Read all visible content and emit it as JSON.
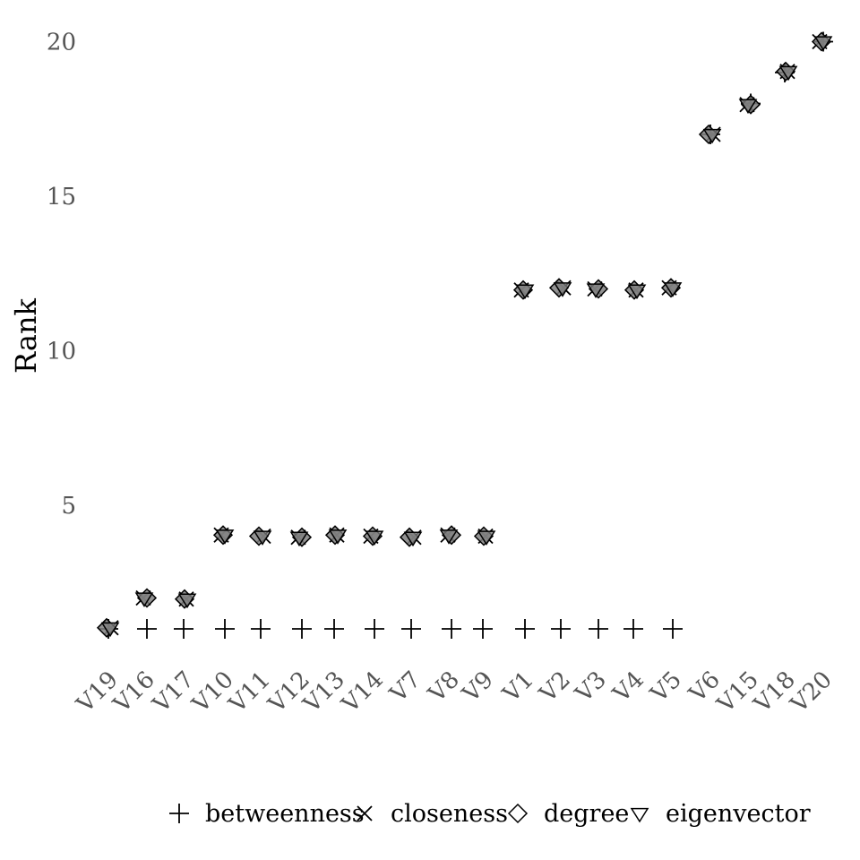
{
  "chart_data": {
    "type": "scatter",
    "title": "",
    "xlabel": "",
    "ylabel": "Rank",
    "ylim": [
      0,
      20
    ],
    "yticks": [
      5,
      10,
      15,
      20
    ],
    "grid": false,
    "legend_position": "bottom",
    "categories": [
      "V19",
      "V16",
      "V17",
      "V10",
      "V11",
      "V12",
      "V13",
      "V14",
      "V7",
      "V8",
      "V9",
      "V1",
      "V2",
      "V3",
      "V4",
      "V5",
      "V6",
      "V15",
      "V18",
      "V20"
    ],
    "series": [
      {
        "name": "betweenness",
        "shape": "plus",
        "values": [
          1,
          1,
          1,
          1,
          1,
          1,
          1,
          1,
          1,
          1,
          1,
          1,
          1,
          1,
          1,
          1,
          17,
          18,
          19,
          20
        ]
      },
      {
        "name": "closeness",
        "shape": "cross",
        "values": [
          1,
          2,
          2,
          4,
          4,
          4,
          4,
          4,
          4,
          4,
          4,
          12,
          12,
          12,
          12,
          12,
          17,
          18,
          19,
          20
        ]
      },
      {
        "name": "degree",
        "shape": "diamond",
        "values": [
          1,
          2,
          2,
          4,
          4,
          4,
          4,
          4,
          4,
          4,
          4,
          12,
          12,
          12,
          12,
          12,
          17,
          18,
          19,
          20
        ]
      },
      {
        "name": "eigenvector",
        "shape": "triangle",
        "values": [
          1,
          2,
          2,
          4,
          4,
          4,
          4,
          4,
          4,
          4,
          4,
          12,
          12,
          12,
          12,
          12,
          17,
          18,
          19,
          20
        ]
      }
    ],
    "colors": {
      "marker_stroke": "#000000",
      "marker_fill": "#808080",
      "tick_text": "#555555"
    }
  }
}
